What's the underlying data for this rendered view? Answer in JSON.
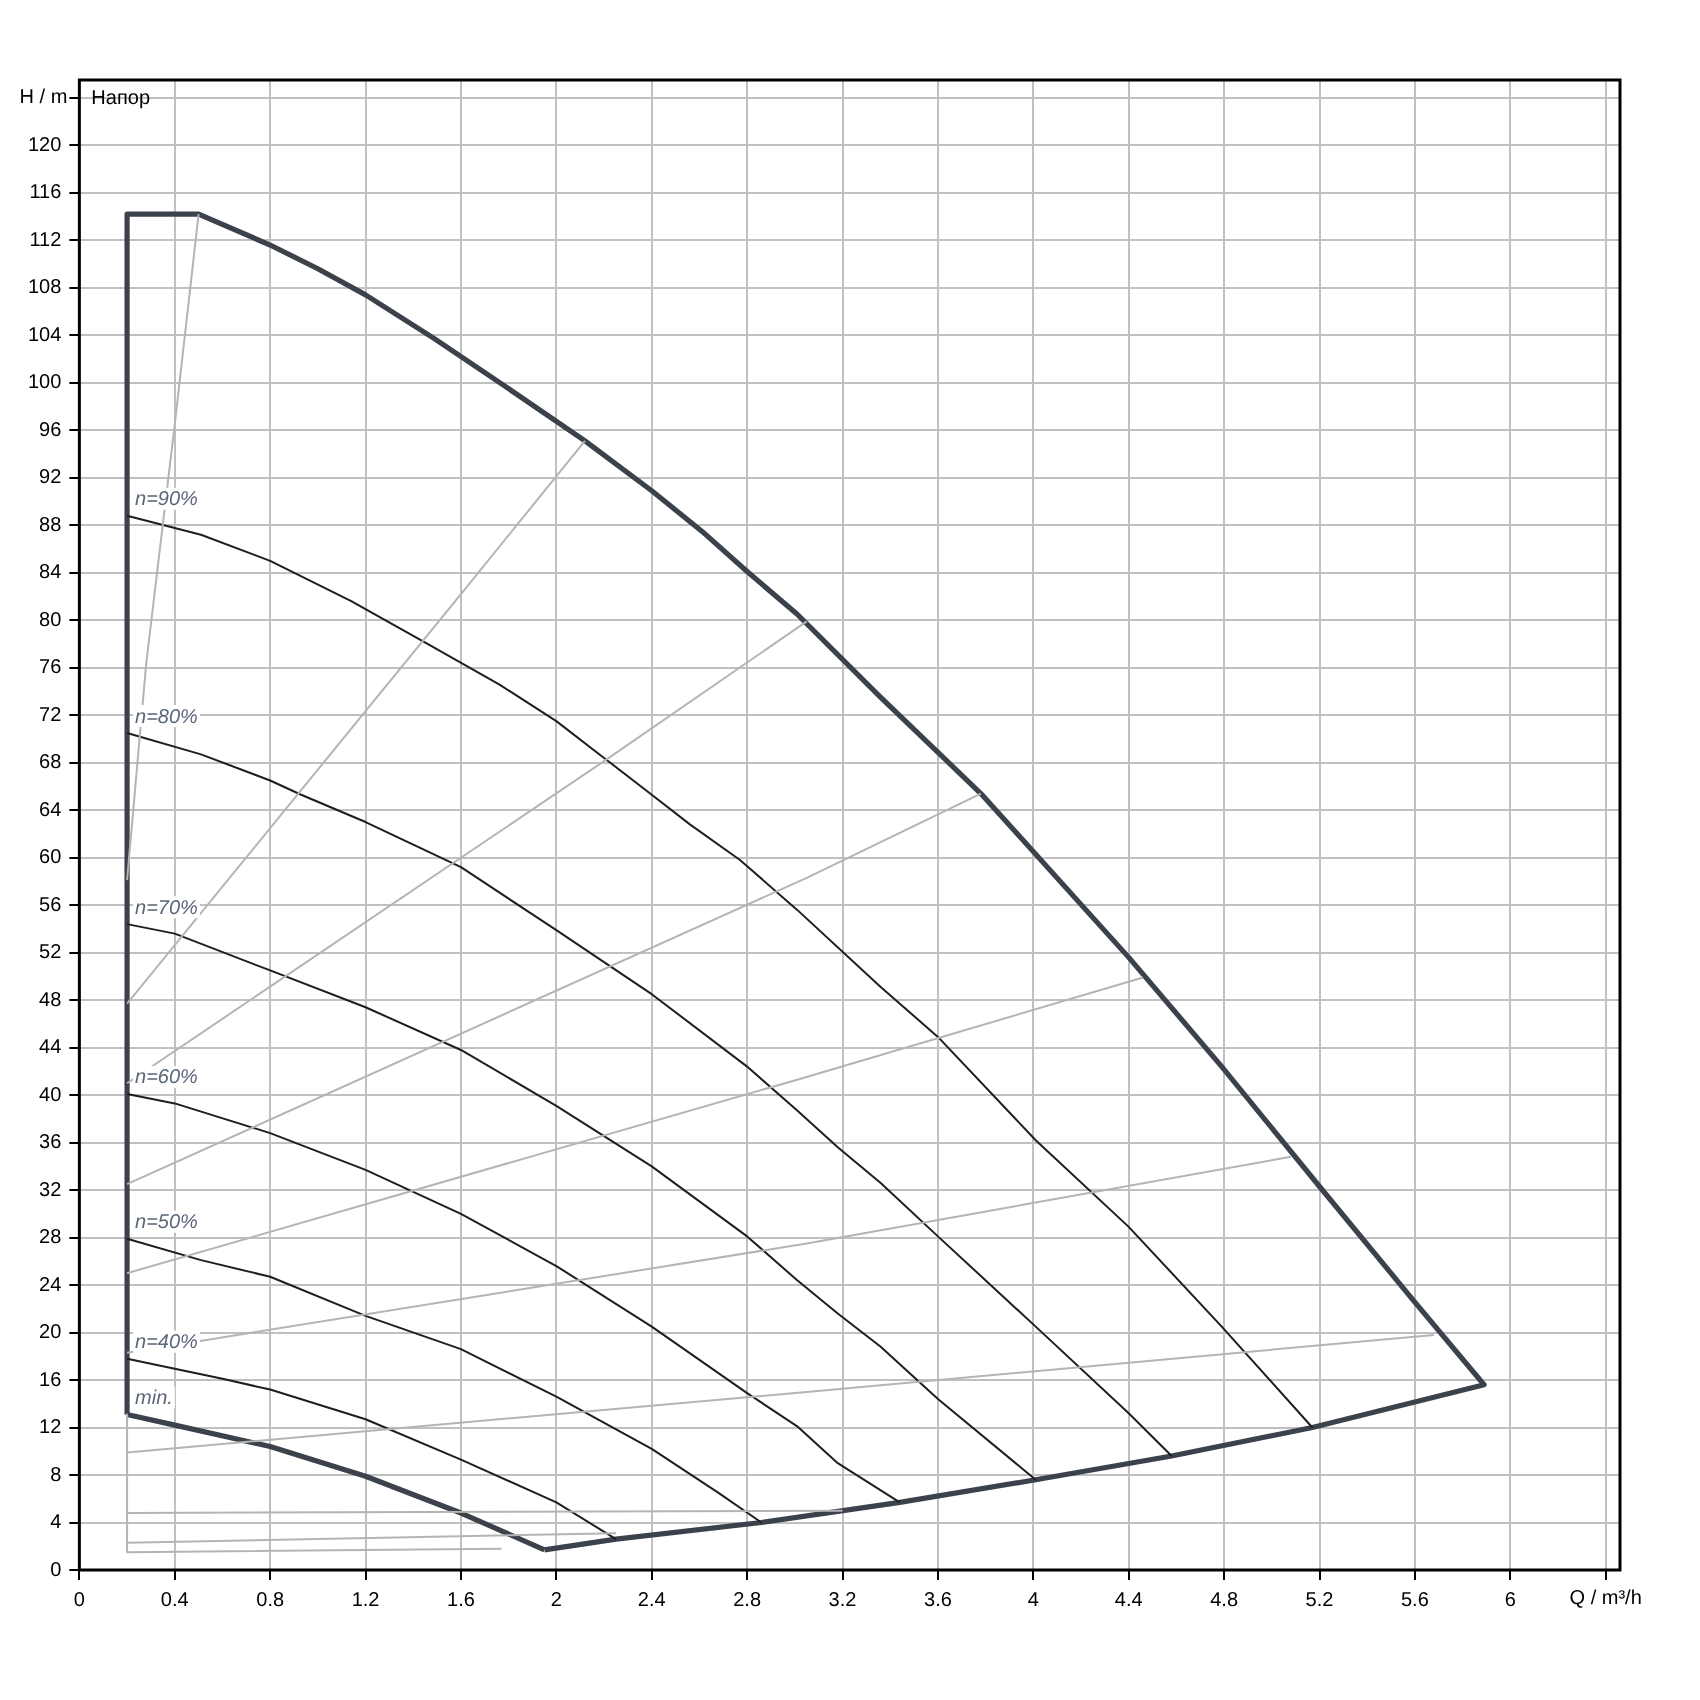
{
  "chart_data": {
    "type": "line",
    "title": "Напор",
    "xlabel": "Q / m³/h",
    "ylabel": "H / m",
    "xlim": [
      0,
      6.46
    ],
    "ylim": [
      0,
      125.5
    ],
    "xticks": [
      0,
      0.4,
      0.8,
      1.2,
      1.6,
      2,
      2.4,
      2.8,
      3.2,
      3.6,
      4,
      4.4,
      4.8,
      5.2,
      5.6,
      6,
      {
        "value": 6.4,
        "label": null
      }
    ],
    "yticks": [
      0,
      4,
      8,
      12,
      16,
      20,
      24,
      28,
      32,
      36,
      40,
      44,
      48,
      52,
      56,
      60,
      64,
      68,
      72,
      76,
      80,
      84,
      88,
      92,
      96,
      100,
      104,
      108,
      112,
      116,
      120,
      {
        "value": 124,
        "label": null
      }
    ],
    "grid": true,
    "legend": false,
    "marker": "none",
    "line_style": "solid",
    "series": [
      {
        "color": "#b4b4b4",
        "x": [
          0.2,
          0.28,
          0.4,
          0.5
        ],
        "values": [
          58.1,
          76.3,
          96.5,
          114.2
        ]
      },
      {
        "color": "#b4b4b4",
        "x": [
          0.2,
          1.6,
          2.12
        ],
        "values": [
          47.7,
          82.2,
          95.1
        ]
      },
      {
        "color": "#b4b4b4",
        "x": [
          0.2,
          2.22,
          3.05
        ],
        "values": [
          41.0,
          68.4,
          79.9
        ]
      },
      {
        "color": "#b4b4b4",
        "x": [
          0.2,
          3.05,
          3.78
        ],
        "values": [
          32.5,
          58.3,
          65.4
        ]
      },
      {
        "color": "#b4b4b4",
        "x": [
          0.2,
          3.01,
          4.46
        ],
        "values": [
          25.0,
          41.3,
          49.9
        ]
      },
      {
        "color": "#b4b4b4",
        "x": [
          0.2,
          3.05,
          5.08
        ],
        "values": [
          18.3,
          27.5,
          34.8
        ]
      },
      {
        "color": "#b4b4b4",
        "x": [
          0.2,
          3.05,
          5.68
        ],
        "values": [
          9.9,
          15.0,
          19.8
        ]
      },
      {
        "color": "#b4b4b4",
        "x": [
          0.2,
          3.2
        ],
        "values": [
          4.8,
          5.0
        ]
      },
      {
        "color": "#b4b4b4",
        "x": [
          0.2,
          2.25
        ],
        "values": [
          2.3,
          3.1
        ]
      },
      {
        "color": "#b4b4b4",
        "x": [
          0.2,
          0.2,
          1.77
        ],
        "values": [
          13.1,
          1.5,
          1.8
        ]
      },
      {
        "name": "n=90%",
        "color": "#1e1e1e",
        "x": [
          0.2,
          0.51,
          0.8,
          1.14,
          1.46,
          1.76,
          2.0,
          2.2,
          2.4,
          2.56,
          2.77,
          3.01,
          3.36,
          3.6,
          4.01,
          4.4,
          4.79,
          5.17
        ],
        "values": [
          88.8,
          87.2,
          85.0,
          81.6,
          78.0,
          74.6,
          71.5,
          68.4,
          65.3,
          62.8,
          59.8,
          55.6,
          49.1,
          44.9,
          36.2,
          28.9,
          20.5,
          12.0
        ]
      },
      {
        "name": "n=80%",
        "color": "#1e1e1e",
        "x": [
          0.2,
          0.51,
          0.8,
          0.93,
          1.2,
          1.6,
          2.0,
          2.4,
          2.8,
          3.01,
          3.18,
          3.36,
          3.6,
          4.01,
          4.4,
          4.58
        ],
        "values": [
          70.5,
          68.7,
          66.5,
          65.3,
          63.0,
          59.2,
          53.9,
          48.5,
          42.4,
          38.7,
          35.6,
          32.6,
          28.1,
          20.5,
          13.2,
          9.6
        ]
      },
      {
        "name": "n=70%",
        "color": "#1e1e1e",
        "x": [
          0.2,
          0.4,
          0.8,
          1.2,
          1.6,
          2.0,
          2.4,
          2.8,
          3.01,
          3.18,
          3.36,
          3.6,
          4.01
        ],
        "values": [
          54.4,
          53.6,
          50.5,
          47.4,
          43.8,
          39.1,
          34.0,
          28.1,
          24.4,
          21.6,
          18.8,
          14.4,
          7.6
        ]
      },
      {
        "name": "n=60%",
        "color": "#1e1e1e",
        "x": [
          0.2,
          0.4,
          0.8,
          1.2,
          1.6,
          2.0,
          2.4,
          2.8,
          3.01,
          3.18,
          3.44
        ],
        "values": [
          40.1,
          39.3,
          36.8,
          33.7,
          30.0,
          25.6,
          20.5,
          14.9,
          12.1,
          9.0,
          5.7
        ]
      },
      {
        "name": "n=50%",
        "color": "#1e1e1e",
        "x": [
          0.2,
          0.51,
          0.8,
          1.2,
          1.6,
          2.0,
          2.4,
          2.68,
          2.86
        ],
        "values": [
          27.9,
          26.1,
          24.7,
          21.4,
          18.6,
          14.6,
          10.2,
          6.5,
          4.0
        ]
      },
      {
        "name": "n=40%",
        "color": "#1e1e1e",
        "x": [
          0.2,
          0.6,
          0.8,
          1.2,
          1.6,
          2.0,
          2.25
        ],
        "values": [
          17.8,
          16.1,
          15.2,
          12.7,
          9.3,
          5.7,
          2.6
        ]
      },
      {
        "name": "min.",
        "color": "#3c424c",
        "x": [
          1.95,
          1.6,
          1.2,
          0.8,
          0.4,
          0.2
        ],
        "values": [
          1.7,
          4.8,
          7.9,
          10.4,
          12.2,
          13.1
        ]
      },
      {
        "color": "#3c424c",
        "x": [
          0.2,
          0.2,
          0.5,
          0.8,
          1.0,
          1.2,
          1.49,
          1.8,
          2.12,
          2.4,
          2.61,
          2.8,
          3.01,
          3.36,
          3.78,
          4.4,
          4.79,
          5.2,
          5.59,
          5.89,
          5.17,
          4.58,
          4.01,
          3.44,
          2.86,
          2.25,
          1.95
        ],
        "values": [
          13.1,
          114.2,
          114.2,
          111.6,
          109.6,
          107.4,
          103.7,
          99.5,
          95.1,
          90.9,
          87.5,
          84.1,
          80.5,
          73.5,
          65.4,
          51.6,
          42.4,
          32.3,
          22.8,
          15.6,
          12.0,
          9.6,
          7.6,
          5.7,
          4.0,
          2.6,
          1.7
        ]
      }
    ]
  }
}
